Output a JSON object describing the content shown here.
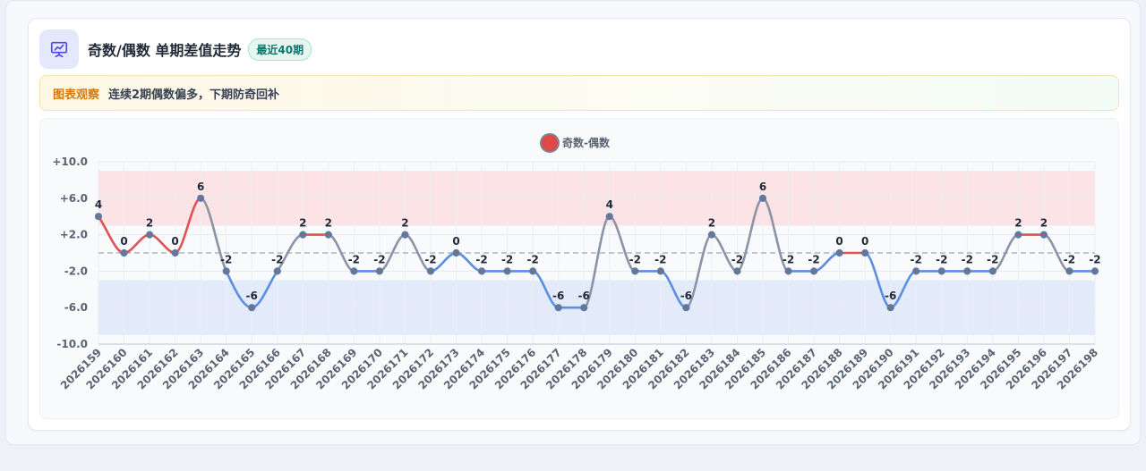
{
  "header": {
    "title": "奇数/偶数 单期差值走势",
    "badge": "最近40期",
    "icon": "chart-presentation-icon"
  },
  "observation": {
    "label": "图表观察",
    "text": "连续2期偶数偏多，下期防奇回补"
  },
  "colors": {
    "positive": "#e05252",
    "negative": "#5b8ee0",
    "neutral": "#8a94a6",
    "legend_dot": "#e04848"
  },
  "chart_data": {
    "type": "line",
    "legend": [
      "奇数-偶数"
    ],
    "categories": [
      "2026159",
      "2026160",
      "2026161",
      "2026162",
      "2026163",
      "2026164",
      "2026165",
      "2026166",
      "2026167",
      "2026168",
      "2026169",
      "2026170",
      "2026171",
      "2026172",
      "2026173",
      "2026174",
      "2026175",
      "2026176",
      "2026177",
      "2026178",
      "2026179",
      "2026180",
      "2026181",
      "2026182",
      "2026183",
      "2026184",
      "2026185",
      "2026186",
      "2026187",
      "2026188",
      "2026189",
      "2026190",
      "2026191",
      "2026192",
      "2026193",
      "2026194",
      "2026195",
      "2026196",
      "2026197",
      "2026198"
    ],
    "series": [
      {
        "name": "奇数-偶数",
        "values": [
          4,
          0,
          2,
          0,
          6,
          -2,
          -6,
          -2,
          2,
          2,
          -2,
          -2,
          2,
          -2,
          0,
          -2,
          -2,
          -2,
          -6,
          -6,
          4,
          -2,
          -2,
          -6,
          2,
          -2,
          6,
          -2,
          -2,
          0,
          0,
          -6,
          -2,
          -2,
          -2,
          -2,
          2,
          2,
          -2,
          -2
        ]
      }
    ],
    "ylim": [
      -10,
      10
    ],
    "yticks": [
      10,
      6,
      2,
      -2,
      -6,
      -10
    ],
    "ytick_labels": [
      "+10.0",
      "+6.0",
      "+2.0",
      "-2.0",
      "-6.0",
      "-10.0"
    ],
    "bands": [
      {
        "from": 3,
        "to": 9,
        "color": "#fbe3e6"
      },
      {
        "from": -9,
        "to": -3,
        "color": "#e3ebfb"
      }
    ],
    "reference_line": 0,
    "grid": true
  }
}
